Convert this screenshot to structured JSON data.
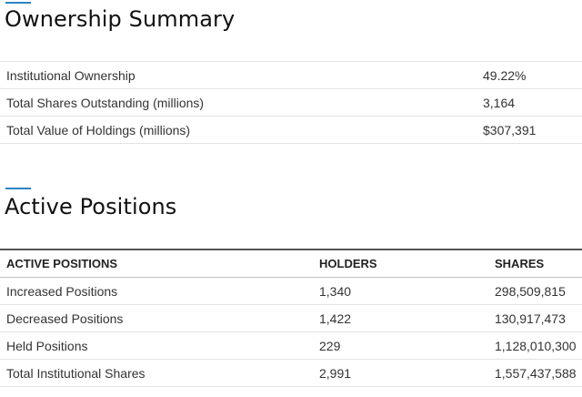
{
  "ownership_summary": {
    "title": "Ownership Summary",
    "rows": [
      {
        "label": "Institutional Ownership",
        "value": "49.22%"
      },
      {
        "label": "Total Shares Outstanding (millions)",
        "value": "3,164"
      },
      {
        "label": "Total Value of Holdings (millions)",
        "value": "$307,391"
      }
    ]
  },
  "active_positions": {
    "title": "Active Positions",
    "columns": {
      "positions": "ACTIVE POSITIONS",
      "holders": "HOLDERS",
      "shares": "SHARES"
    },
    "rows": [
      {
        "label": "Increased Positions",
        "holders": "1,340",
        "shares": "298,509,815"
      },
      {
        "label": "Decreased Positions",
        "holders": "1,422",
        "shares": "130,917,473"
      },
      {
        "label": "Held Positions",
        "holders": "229",
        "shares": "1,128,010,300"
      },
      {
        "label": "Total Institutional Shares",
        "holders": "2,991",
        "shares": "1,557,437,588"
      }
    ]
  },
  "colors": {
    "accent": "#2a86c2",
    "text": "#333333",
    "row_divider": "#e3e3e3",
    "header_rule": "#555555"
  }
}
